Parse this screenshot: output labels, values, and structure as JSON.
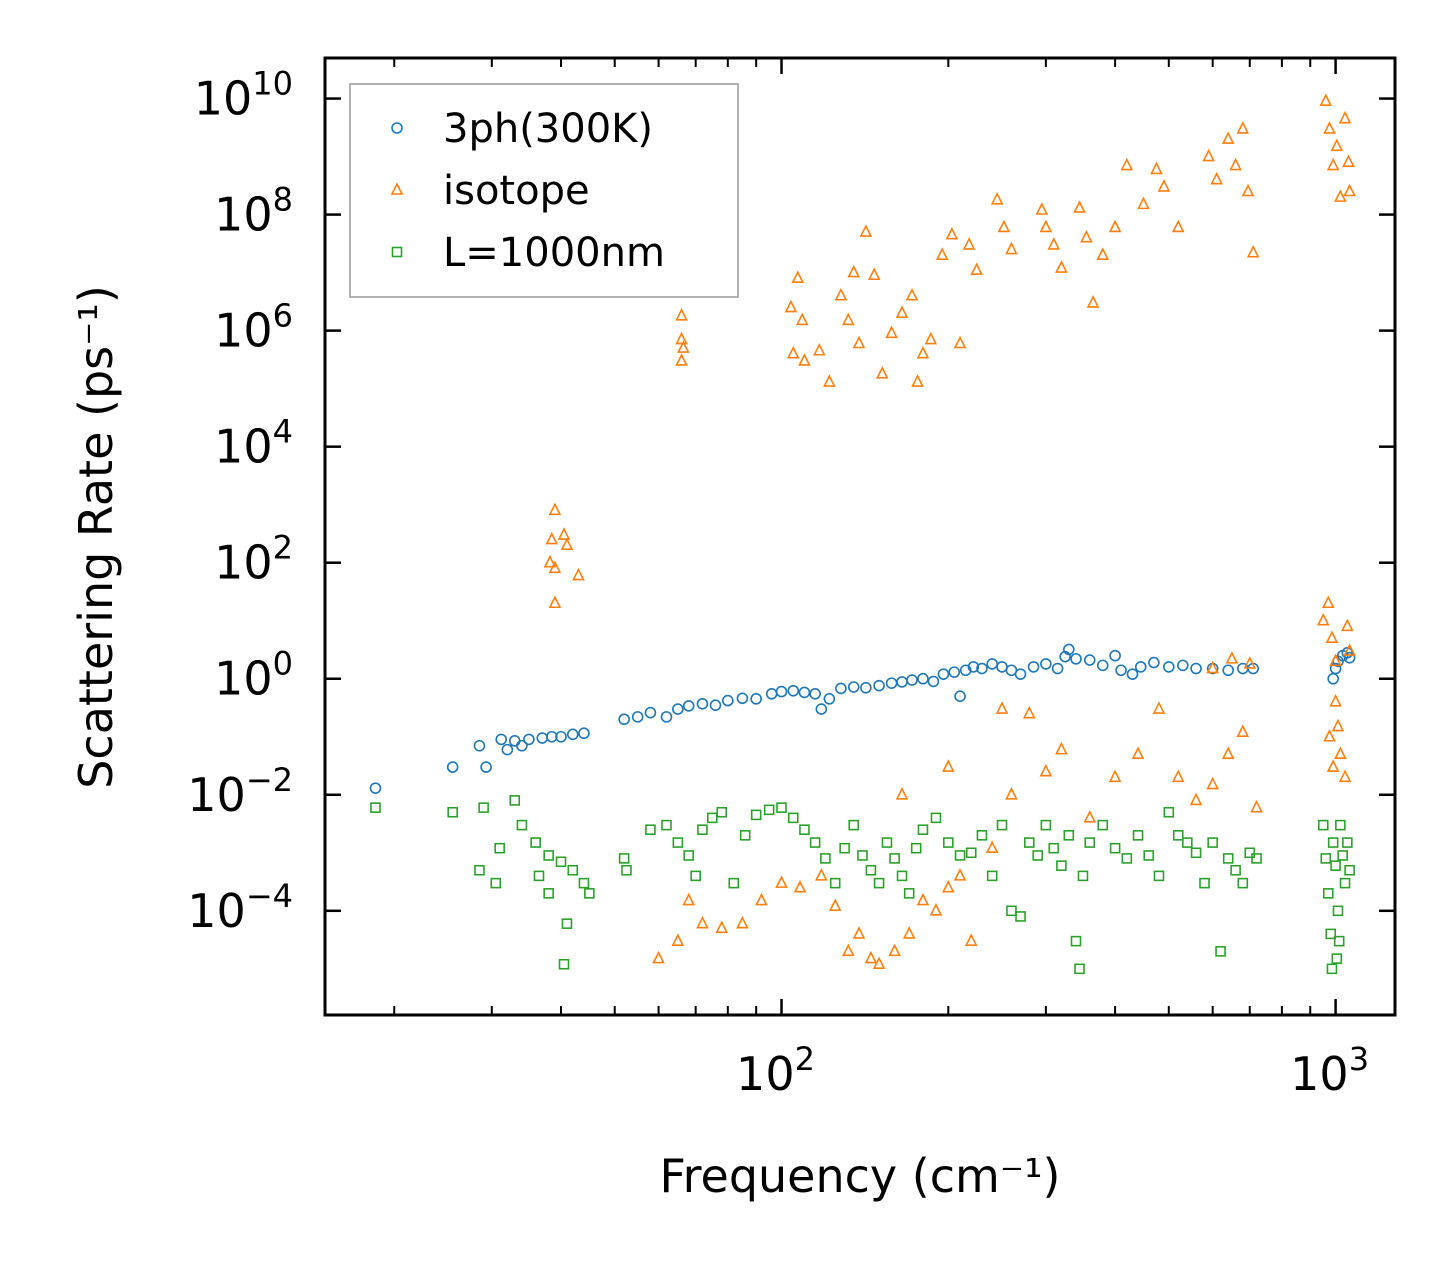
{
  "chart_data": {
    "type": "scatter",
    "title": "",
    "xlabel": "Frequency (cm⁻¹)",
    "ylabel": "Scattering Rate (ps⁻¹)",
    "xscale": "log",
    "yscale": "log",
    "xlim": [
      15,
      1280
    ],
    "ylim": [
      1.6e-06,
      50000000000
    ],
    "x_ticks": [
      {
        "value": 100,
        "base": "10",
        "exp": "2"
      },
      {
        "value": 1000,
        "base": "10",
        "exp": "3"
      }
    ],
    "y_ticks": [
      {
        "value": 0.0001,
        "base": "10",
        "exp": "−4"
      },
      {
        "value": 0.01,
        "base": "10",
        "exp": "−2"
      },
      {
        "value": 1,
        "base": "10",
        "exp": "0"
      },
      {
        "value": 100,
        "base": "10",
        "exp": "2"
      },
      {
        "value": 10000,
        "base": "10",
        "exp": "4"
      },
      {
        "value": 1000000,
        "base": "10",
        "exp": "6"
      },
      {
        "value": 100000000,
        "base": "10",
        "exp": "8"
      },
      {
        "value": 10000000000,
        "base": "10",
        "exp": "10"
      }
    ],
    "legend_position": "top-left",
    "series": [
      {
        "name": "3ph(300K)",
        "marker": "circle",
        "color": "#1f77b4",
        "points": [
          [
            18.5,
            0.013
          ],
          [
            25.5,
            0.03
          ],
          [
            28.5,
            0.07
          ],
          [
            29.3,
            0.03
          ],
          [
            31.2,
            0.09
          ],
          [
            33,
            0.085
          ],
          [
            35,
            0.09
          ],
          [
            37,
            0.095
          ],
          [
            38.5,
            0.1
          ],
          [
            40,
            0.1
          ],
          [
            42,
            0.11
          ],
          [
            44,
            0.115
          ],
          [
            32,
            0.06
          ],
          [
            34,
            0.07
          ],
          [
            52,
            0.2
          ],
          [
            55,
            0.22
          ],
          [
            58,
            0.26
          ],
          [
            62,
            0.22
          ],
          [
            65,
            0.3
          ],
          [
            68,
            0.34
          ],
          [
            72,
            0.37
          ],
          [
            76,
            0.35
          ],
          [
            80,
            0.42
          ],
          [
            85,
            0.46
          ],
          [
            90,
            0.45
          ],
          [
            96,
            0.55
          ],
          [
            100,
            0.6
          ],
          [
            105,
            0.62
          ],
          [
            110,
            0.58
          ],
          [
            115,
            0.55
          ],
          [
            118,
            0.3
          ],
          [
            122,
            0.45
          ],
          [
            128,
            0.68
          ],
          [
            135,
            0.72
          ],
          [
            142,
            0.7
          ],
          [
            150,
            0.76
          ],
          [
            158,
            0.84
          ],
          [
            165,
            0.88
          ],
          [
            172,
            0.95
          ],
          [
            180,
            1.0
          ],
          [
            188,
            0.9
          ],
          [
            196,
            1.2
          ],
          [
            205,
            1.3
          ],
          [
            210,
            0.5
          ],
          [
            215,
            1.4
          ],
          [
            222,
            1.6
          ],
          [
            230,
            1.5
          ],
          [
            240,
            1.8
          ],
          [
            250,
            1.6
          ],
          [
            260,
            1.4
          ],
          [
            270,
            1.2
          ],
          [
            285,
            1.6
          ],
          [
            300,
            1.8
          ],
          [
            315,
            1.5
          ],
          [
            325,
            2.4
          ],
          [
            330,
            3.2
          ],
          [
            340,
            2.2
          ],
          [
            360,
            2.1
          ],
          [
            380,
            1.7
          ],
          [
            400,
            2.5
          ],
          [
            410,
            1.4
          ],
          [
            430,
            1.2
          ],
          [
            445,
            1.6
          ],
          [
            470,
            1.9
          ],
          [
            500,
            1.6
          ],
          [
            530,
            1.7
          ],
          [
            560,
            1.5
          ],
          [
            600,
            1.5
          ],
          [
            640,
            1.4
          ],
          [
            680,
            1.5
          ],
          [
            710,
            1.5
          ],
          [
            990,
            1.0
          ],
          [
            1000,
            1.5
          ],
          [
            1010,
            2.0
          ],
          [
            1030,
            2.5
          ],
          [
            1050,
            2.8
          ],
          [
            1060,
            2.3
          ]
        ]
      },
      {
        "name": "isotope",
        "marker": "triangle",
        "color": "#ff7f0e",
        "points": [
          [
            39,
            800
          ],
          [
            38.5,
            250
          ],
          [
            40.5,
            300
          ],
          [
            41,
            200
          ],
          [
            38.2,
            100
          ],
          [
            39,
            80
          ],
          [
            43,
            60
          ],
          [
            39,
            20
          ],
          [
            66,
            1800000
          ],
          [
            66,
            700000
          ],
          [
            66.5,
            500000
          ],
          [
            66,
            300000
          ],
          [
            104,
            2500000
          ],
          [
            107,
            8000000
          ],
          [
            109,
            1500000
          ],
          [
            105,
            400000
          ],
          [
            110,
            300000
          ],
          [
            117,
            450000
          ],
          [
            122,
            130000
          ],
          [
            128,
            4000000
          ],
          [
            132,
            1500000
          ],
          [
            135,
            10000000
          ],
          [
            138,
            600000
          ],
          [
            142,
            50000000
          ],
          [
            147,
            9000000
          ],
          [
            152,
            180000
          ],
          [
            158,
            900000
          ],
          [
            165,
            2000000
          ],
          [
            172,
            4000000
          ],
          [
            176,
            130000
          ],
          [
            180,
            400000
          ],
          [
            186,
            700000
          ],
          [
            195,
            20000000
          ],
          [
            203,
            45000000
          ],
          [
            210,
            600000
          ],
          [
            218,
            30000000
          ],
          [
            225,
            11000000
          ],
          [
            245,
            180000000
          ],
          [
            252,
            60000000
          ],
          [
            260,
            25000000
          ],
          [
            295,
            120000000
          ],
          [
            300,
            60000000
          ],
          [
            310,
            30000000
          ],
          [
            320,
            12000000
          ],
          [
            345,
            130000000
          ],
          [
            355,
            40000000
          ],
          [
            365,
            3000000
          ],
          [
            380,
            20000000
          ],
          [
            400,
            60000000
          ],
          [
            420,
            700000000
          ],
          [
            450,
            150000000
          ],
          [
            475,
            600000000
          ],
          [
            490,
            300000000
          ],
          [
            520,
            60000000
          ],
          [
            590,
            1000000000
          ],
          [
            610,
            400000000
          ],
          [
            640,
            2000000000
          ],
          [
            660,
            700000000
          ],
          [
            680,
            3000000000
          ],
          [
            695,
            250000000
          ],
          [
            710,
            22000000
          ],
          [
            960,
            9000000000
          ],
          [
            975,
            3000000000
          ],
          [
            990,
            700000000
          ],
          [
            1005,
            1500000000
          ],
          [
            1020,
            200000000
          ],
          [
            1040,
            4500000000
          ],
          [
            1055,
            800000000
          ],
          [
            1060,
            250000000
          ],
          [
            60,
            1.5e-05
          ],
          [
            65,
            3e-05
          ],
          [
            68,
            0.00015
          ],
          [
            72,
            6e-05
          ],
          [
            78,
            5e-05
          ],
          [
            85,
            6e-05
          ],
          [
            92,
            0.00015
          ],
          [
            100,
            0.0003
          ],
          [
            108,
            0.00025
          ],
          [
            118,
            0.0004
          ],
          [
            125,
            0.00012
          ],
          [
            132,
            2e-05
          ],
          [
            138,
            4e-05
          ],
          [
            145,
            1.5e-05
          ],
          [
            150,
            1.2e-05
          ],
          [
            160,
            2e-05
          ],
          [
            170,
            4e-05
          ],
          [
            180,
            0.00015
          ],
          [
            190,
            0.0001
          ],
          [
            200,
            0.00025
          ],
          [
            210,
            0.0004
          ],
          [
            220,
            3e-05
          ],
          [
            165,
            0.01
          ],
          [
            200,
            0.03
          ],
          [
            240,
            0.0012
          ],
          [
            250,
            0.3
          ],
          [
            260,
            0.01
          ],
          [
            280,
            0.25
          ],
          [
            300,
            0.025
          ],
          [
            320,
            0.06
          ],
          [
            360,
            0.004
          ],
          [
            400,
            0.02
          ],
          [
            440,
            0.05
          ],
          [
            480,
            0.3
          ],
          [
            520,
            0.02
          ],
          [
            560,
            0.008
          ],
          [
            600,
            0.015
          ],
          [
            640,
            0.05
          ],
          [
            680,
            0.12
          ],
          [
            720,
            0.006
          ],
          [
            600,
            1.5
          ],
          [
            650,
            2.2
          ],
          [
            700,
            1.8
          ],
          [
            950,
            10
          ],
          [
            970,
            20
          ],
          [
            985,
            5
          ],
          [
            1000,
            0.4
          ],
          [
            1010,
            0.15
          ],
          [
            1020,
            0.05
          ],
          [
            1040,
            0.02
          ],
          [
            1050,
            8
          ],
          [
            1060,
            3
          ],
          [
            975,
            0.1
          ],
          [
            990,
            0.03
          ],
          [
            1000,
            2
          ]
        ]
      },
      {
        "name": "L=1000nm",
        "marker": "square",
        "color": "#2ca02c",
        "points": [
          [
            18.5,
            0.006
          ],
          [
            25.5,
            0.005
          ],
          [
            29,
            0.006
          ],
          [
            31,
            0.0012
          ],
          [
            28.5,
            0.0005
          ],
          [
            30.5,
            0.0003
          ],
          [
            33,
            0.008
          ],
          [
            34,
            0.003
          ],
          [
            36,
            0.0015
          ],
          [
            38,
            0.0009
          ],
          [
            40,
            0.0007
          ],
          [
            42,
            0.0005
          ],
          [
            44,
            0.0003
          ],
          [
            45,
            0.0002
          ],
          [
            41,
            6e-05
          ],
          [
            40.5,
            1.2e-05
          ],
          [
            38,
            0.0002
          ],
          [
            36.5,
            0.0004
          ],
          [
            52,
            0.0008
          ],
          [
            52.5,
            0.0005
          ],
          [
            58,
            0.0025
          ],
          [
            62,
            0.003
          ],
          [
            65,
            0.0015
          ],
          [
            68,
            0.0009
          ],
          [
            70,
            0.0004
          ],
          [
            72,
            0.0025
          ],
          [
            75,
            0.004
          ],
          [
            78,
            0.005
          ],
          [
            82,
            0.0003
          ],
          [
            86,
            0.002
          ],
          [
            90,
            0.0045
          ],
          [
            95,
            0.0055
          ],
          [
            100,
            0.006
          ],
          [
            105,
            0.004
          ],
          [
            110,
            0.0025
          ],
          [
            115,
            0.0015
          ],
          [
            120,
            0.0008
          ],
          [
            125,
            0.0003
          ],
          [
            130,
            0.0012
          ],
          [
            135,
            0.003
          ],
          [
            140,
            0.0009
          ],
          [
            145,
            0.0005
          ],
          [
            150,
            0.0003
          ],
          [
            155,
            0.0015
          ],
          [
            160,
            0.0008
          ],
          [
            165,
            0.0004
          ],
          [
            170,
            0.0002
          ],
          [
            175,
            0.0012
          ],
          [
            180,
            0.0025
          ],
          [
            190,
            0.004
          ],
          [
            200,
            0.0015
          ],
          [
            210,
            0.0009
          ],
          [
            220,
            0.001
          ],
          [
            230,
            0.002
          ],
          [
            240,
            0.0004
          ],
          [
            250,
            0.003
          ],
          [
            260,
            0.0001
          ],
          [
            270,
            8e-05
          ],
          [
            280,
            0.0015
          ],
          [
            290,
            0.0009
          ],
          [
            300,
            0.003
          ],
          [
            310,
            0.0012
          ],
          [
            320,
            0.0006
          ],
          [
            330,
            0.002
          ],
          [
            340,
            3e-05
          ],
          [
            345,
            1e-05
          ],
          [
            350,
            0.0004
          ],
          [
            360,
            0.0015
          ],
          [
            380,
            0.003
          ],
          [
            400,
            0.0012
          ],
          [
            420,
            0.0008
          ],
          [
            440,
            0.002
          ],
          [
            460,
            0.0009
          ],
          [
            480,
            0.0004
          ],
          [
            500,
            0.005
          ],
          [
            520,
            0.002
          ],
          [
            540,
            0.0015
          ],
          [
            560,
            0.001
          ],
          [
            580,
            0.0003
          ],
          [
            600,
            0.0015
          ],
          [
            620,
            2e-05
          ],
          [
            640,
            0.0008
          ],
          [
            660,
            0.0005
          ],
          [
            680,
            0.0003
          ],
          [
            700,
            0.001
          ],
          [
            720,
            0.0008
          ],
          [
            950,
            0.003
          ],
          [
            960,
            0.0008
          ],
          [
            970,
            0.0002
          ],
          [
            980,
            4e-05
          ],
          [
            985,
            1e-05
          ],
          [
            990,
            0.0015
          ],
          [
            1000,
            0.0006
          ],
          [
            1010,
            0.0001
          ],
          [
            1020,
            0.003
          ],
          [
            1030,
            0.0009
          ],
          [
            1040,
            0.0003
          ],
          [
            1050,
            0.0015
          ],
          [
            1060,
            0.0005
          ],
          [
            1005,
            1.5e-05
          ],
          [
            1015,
            3e-05
          ]
        ]
      }
    ]
  }
}
